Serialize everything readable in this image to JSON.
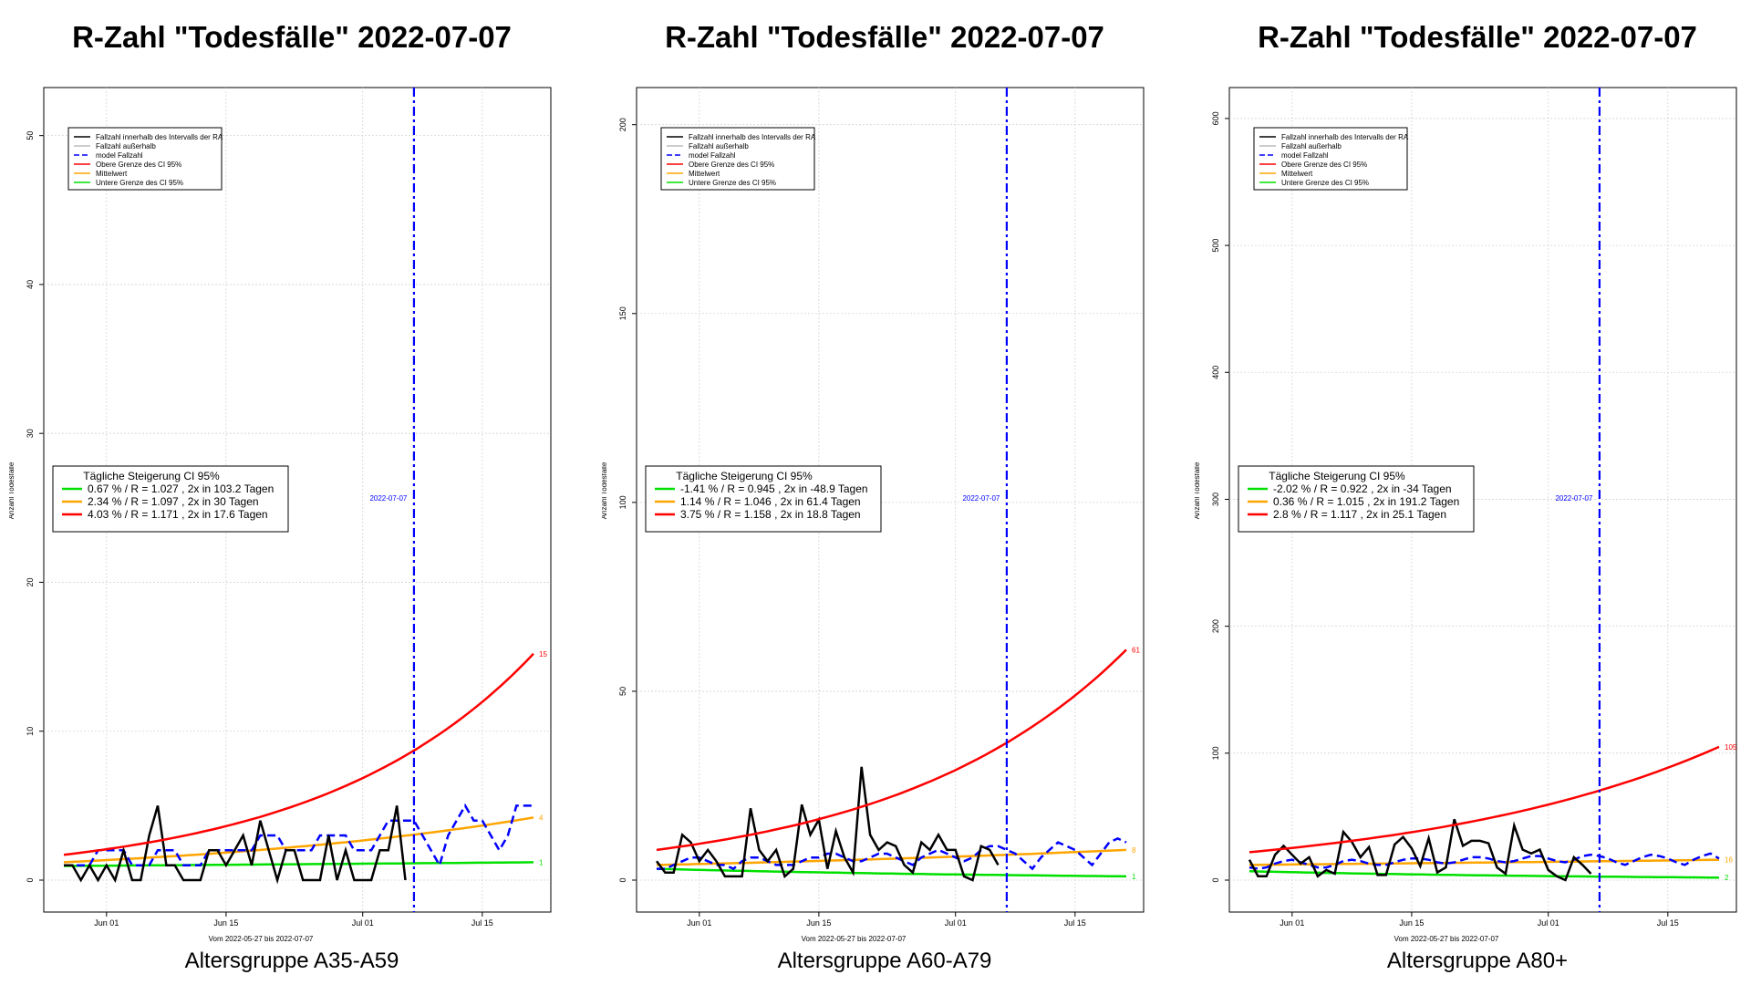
{
  "chart_data": [
    {
      "type": "line",
      "title": "R-Zahl \"Todesfälle\" 2022-07-07",
      "subtitle": "Altersgruppe A35-A59",
      "xlabel": "Vom 2022-05-27 bis 2022-07-07",
      "ylabel": "Anzahl Todesfälle",
      "ylim": [
        0,
        52
      ],
      "yticks": [
        0,
        10,
        20,
        30,
        40,
        50
      ],
      "xticks": [
        "Jun 01",
        "Jun 15",
        "Jul 01",
        "Jul 15"
      ],
      "vline_label": "2022-07-07",
      "legend": {
        "placement": "top-left",
        "entries": [
          "Fallzahl innerhalb des Intervalls der RA",
          "Fallzahl außerhalb",
          "model Fallzahl",
          "Obere Grenze des CI 95%",
          "Mittelwert",
          "Untere Grenze des CI 95%"
        ]
      },
      "ci_box": {
        "title": "Tägliche Steigerung CI  95%",
        "lines": [
          "0.67 % / R = 1.027 , 2x in 103.2 Tagen",
          "2.34 % / R = 1.097 , 2x in 30 Tagen",
          "4.03 % / R = 1.171 , 2x in 17.6 Tagen"
        ]
      },
      "end_labels": {
        "upper": "15",
        "mean": "4",
        "lower": "1"
      },
      "series": [
        {
          "name": "Fallzahl innerhalb des Intervalls der RA",
          "values": [
            1,
            1,
            0,
            1,
            0,
            1,
            0,
            2,
            0,
            0,
            3,
            5,
            1,
            1,
            0,
            0,
            0,
            2,
            2,
            1,
            2,
            3,
            1,
            4,
            2,
            0,
            2,
            2,
            0,
            0,
            0,
            3,
            0,
            2,
            0,
            0,
            0,
            2,
            2,
            5,
            0
          ]
        },
        {
          "name": "model Fallzahl",
          "values": [
            1,
            1,
            1,
            1,
            2,
            2,
            2,
            2,
            1,
            1,
            1,
            2,
            2,
            2,
            1,
            1,
            1,
            2,
            2,
            2,
            2,
            2,
            2,
            3,
            3,
            3,
            2,
            2,
            2,
            2,
            3,
            3,
            3,
            3,
            2,
            2,
            2,
            3,
            4,
            4,
            4,
            4,
            3,
            2,
            1,
            3,
            4,
            5,
            4,
            4,
            3,
            2,
            3,
            5,
            5,
            5
          ]
        },
        {
          "name": "Obere Grenze des CI 95%",
          "start": 1.7,
          "end": 15.2
        },
        {
          "name": "Mittelwert",
          "start": 1.2,
          "end": 4.2
        },
        {
          "name": "Untere Grenze des CI 95%",
          "start": 0.95,
          "end": 1.2
        }
      ]
    },
    {
      "type": "line",
      "title": "R-Zahl \"Todesfälle\" 2022-07-07",
      "subtitle": "Altersgruppe A60-A79",
      "xlabel": "Vom 2022-05-27 bis 2022-07-07",
      "ylabel": "Anzahl Todesfälle",
      "ylim": [
        0,
        205
      ],
      "yticks": [
        0,
        50,
        100,
        150,
        200
      ],
      "xticks": [
        "Jun 01",
        "Jun 15",
        "Jul 01",
        "Jul 15"
      ],
      "vline_label": "2022-07-07",
      "legend": {
        "placement": "top-left",
        "entries": [
          "Fallzahl innerhalb des Intervalls der RA",
          "Fallzahl außerhalb",
          "model Fallzahl",
          "Obere Grenze des CI 95%",
          "Mittelwert",
          "Untere Grenze des CI 95%"
        ]
      },
      "ci_box": {
        "title": "Tägliche Steigerung CI  95%",
        "lines": [
          "-1.41 % / R = 0.945 , 2x in -48.9 Tagen",
          "1.14 % / R = 1.046 , 2x in 61.4 Tagen",
          "3.75 % / R = 1.158 , 2x in 18.8 Tagen"
        ]
      },
      "end_labels": {
        "upper": "61",
        "mean": "8",
        "lower": "1"
      },
      "series": [
        {
          "name": "Fallzahl innerhalb des Intervalls der RA",
          "values": [
            5,
            2,
            2,
            12,
            10,
            5,
            8,
            5,
            1,
            1,
            1,
            19,
            8,
            5,
            8,
            1,
            3,
            20,
            12,
            16,
            3,
            13,
            6,
            2,
            30,
            12,
            8,
            10,
            9,
            4,
            2,
            10,
            8,
            12,
            8,
            8,
            1,
            0,
            9,
            8,
            4
          ]
        },
        {
          "name": "model Fallzahl",
          "values": [
            3,
            3,
            4,
            5,
            6,
            6,
            5,
            4,
            4,
            3,
            5,
            6,
            6,
            5,
            4,
            4,
            4,
            5,
            6,
            6,
            7,
            7,
            6,
            5,
            5,
            6,
            7,
            7,
            6,
            5,
            4,
            6,
            7,
            8,
            7,
            6,
            5,
            6,
            8,
            9,
            9,
            8,
            7,
            5,
            3,
            6,
            8,
            10,
            9,
            8,
            6,
            4,
            7,
            10,
            11,
            10
          ]
        },
        {
          "name": "Obere Grenze des CI 95%",
          "start": 8,
          "end": 61
        },
        {
          "name": "Mittelwert",
          "start": 4,
          "end": 8
        },
        {
          "name": "Untere Grenze des CI 95%",
          "start": 3,
          "end": 1
        }
      ]
    },
    {
      "type": "line",
      "title": "R-Zahl \"Todesfälle\" 2022-07-07",
      "subtitle": "Altersgruppe A80+",
      "xlabel": "Vom 2022-05-27 bis 2022-07-07",
      "ylabel": "Anzahl Todesfälle",
      "ylim": [
        0,
        610
      ],
      "yticks": [
        0,
        100,
        200,
        300,
        400,
        500,
        600
      ],
      "xticks": [
        "Jun 01",
        "Jun 15",
        "Jul 01",
        "Jul 15"
      ],
      "vline_label": "2022-07-07",
      "legend": {
        "placement": "top-left",
        "entries": [
          "Fallzahl innerhalb des Intervalls der RA",
          "Fallzahl außerhalb",
          "model Fallzahl",
          "Obere Grenze des CI 95%",
          "Mittelwert",
          "Untere Grenze des CI 95%"
        ]
      },
      "ci_box": {
        "title": "Tägliche Steigerung CI  95%",
        "lines": [
          "-2.02 % / R = 0.922 , 2x in -34 Tagen",
          "0.36 % / R = 1.015 , 2x in 191.2 Tagen",
          "2.8 % / R = 1.117 , 2x in 25.1 Tagen"
        ]
      },
      "end_labels": {
        "upper": "105",
        "mean": "16",
        "lower": "2"
      },
      "series": [
        {
          "name": "Fallzahl innerhalb des Intervalls der RA",
          "values": [
            16,
            3,
            3,
            20,
            27,
            20,
            13,
            18,
            3,
            8,
            5,
            38,
            30,
            18,
            26,
            4,
            4,
            28,
            34,
            25,
            11,
            33,
            6,
            10,
            48,
            27,
            31,
            31,
            29,
            10,
            5,
            43,
            24,
            21,
            24,
            8,
            3,
            0,
            18,
            12,
            5
          ]
        },
        {
          "name": "model Fallzahl",
          "values": [
            10,
            9,
            10,
            13,
            15,
            16,
            14,
            12,
            10,
            10,
            12,
            15,
            16,
            15,
            13,
            12,
            12,
            14,
            16,
            17,
            17,
            16,
            14,
            13,
            14,
            16,
            18,
            18,
            17,
            15,
            14,
            15,
            17,
            19,
            19,
            17,
            15,
            14,
            16,
            19,
            20,
            19,
            17,
            14,
            12,
            15,
            18,
            20,
            19,
            17,
            14,
            12,
            16,
            19,
            21,
            17
          ]
        },
        {
          "name": "Obere Grenze des CI 95%",
          "start": 22,
          "end": 105
        },
        {
          "name": "Mittelwert",
          "start": 12,
          "end": 16
        },
        {
          "name": "Untere Grenze des CI 95%",
          "start": 7,
          "end": 2
        }
      ]
    }
  ],
  "colors": {
    "case": "#000000",
    "outside": "#bbbbbb",
    "model": "#0000ff",
    "upper": "#ff0000",
    "mean": "#ffa500",
    "lower": "#00e000",
    "vline": "#0000ff",
    "grid": "#d3d3d3"
  }
}
